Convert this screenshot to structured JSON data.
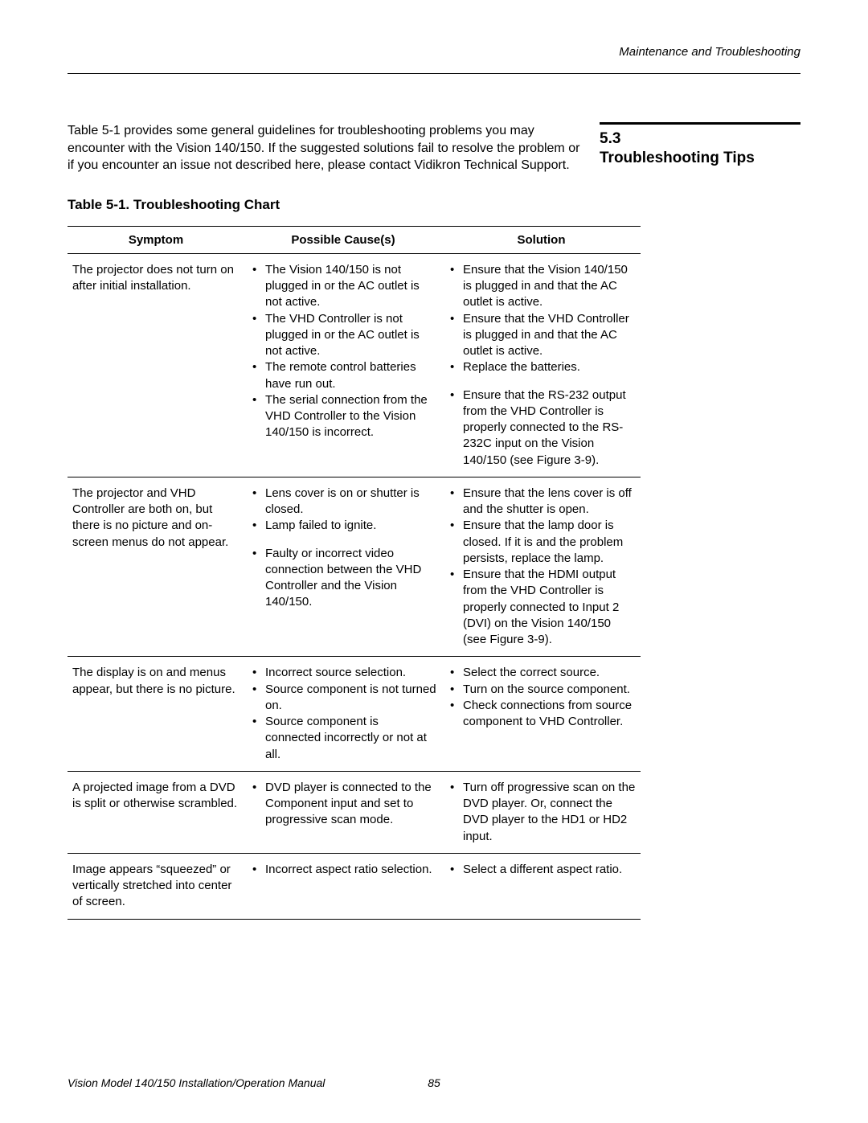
{
  "running_head": "Maintenance and Troubleshooting",
  "section": {
    "number": "5.3",
    "title": "Troubleshooting Tips"
  },
  "intro": "Table 5-1 provides some general guidelines for troubleshooting problems you may encounter with the Vision 140/150. If the suggested solutions fail to resolve the problem or if you encounter an issue not described here, please contact Vidikron Technical Support.",
  "table_caption": "Table 5-1. Troubleshooting Chart",
  "columns": [
    "Symptom",
    "Possible Cause(s)",
    "Solution"
  ],
  "rows": [
    {
      "symptom": "The projector does not turn on after initial installation.",
      "causes": [
        "The Vision 140/150 is not plugged in or the AC outlet is not active.",
        "The VHD Controller is not plugged in or the AC outlet is not active.",
        "The remote control batteries have run out.",
        "The serial connection from the VHD Controller to the Vision 140/150 is incorrect."
      ],
      "solutions": [
        "Ensure that the Vision 140/150 is plugged in and that the AC outlet is active.",
        "Ensure that the VHD Controller is plugged in and that the AC outlet is active.",
        "Replace the batteries.",
        "Ensure that the RS-232 output from the VHD Controller is properly connected to the RS-232C input on the Vision 140/150 (see Figure 3-9)."
      ],
      "solution_gap_before": [
        false,
        false,
        false,
        true
      ]
    },
    {
      "symptom": "The projector and VHD Controller are both on, but there is no picture and on-screen menus do not appear.",
      "causes": [
        "Lens cover is on or shutter is closed.",
        "Lamp failed to ignite.",
        "Faulty or incorrect video connection between the VHD Controller and the Vision 140/150."
      ],
      "cause_gap_before": [
        false,
        false,
        true
      ],
      "solutions": [
        "Ensure that the lens cover is off and the shutter is open.",
        "Ensure that the lamp door is closed. If it is and the problem persists, replace the lamp.",
        "Ensure that the HDMI output from the VHD Controller is properly connected to Input 2 (DVI) on the Vision 140/150 (see Figure 3-9)."
      ]
    },
    {
      "symptom": "The display is on and menus appear, but there is no picture.",
      "causes": [
        "Incorrect source selection.",
        "Source component is not turned on.",
        "Source component is connected incorrectly or not at all."
      ],
      "solutions": [
        "Select the correct source.",
        "Turn on the source component.",
        "Check connections from source component to VHD Controller."
      ]
    },
    {
      "symptom": "A projected image from a DVD is split or otherwise scrambled.",
      "causes": [
        "DVD player is connected to the Component input and set to progressive scan mode."
      ],
      "solutions": [
        "Turn off progressive scan on the DVD player. Or, connect the DVD player to the HD1 or HD2 input."
      ]
    },
    {
      "symptom": "Image appears “squeezed” or vertically stretched into center of screen.",
      "causes": [
        "Incorrect aspect ratio selection."
      ],
      "solutions": [
        "Select a different aspect ratio."
      ]
    }
  ],
  "footer": {
    "title": "Vision Model 140/150 Installation/Operation Manual",
    "page": "85"
  }
}
